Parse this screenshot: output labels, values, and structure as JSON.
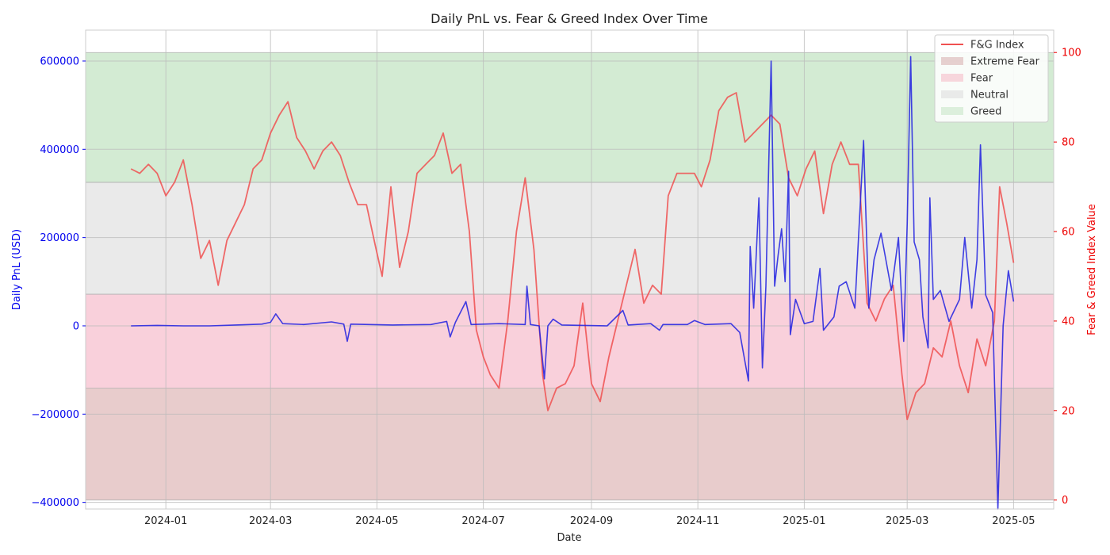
{
  "chart_data": {
    "type": "line",
    "title": "Daily PnL vs. Fear & Greed Index Over Time",
    "xlabel": "Date",
    "ylabel_left": "Daily PnL (USD)",
    "ylabel_right": "Fear & Greed Index Value",
    "x_tick_labels": [
      "2024-01",
      "2024-03",
      "2024-05",
      "2024-07",
      "2024-09",
      "2024-11",
      "2025-01",
      "2025-03",
      "2025-05"
    ],
    "x_tick_dates": [
      "2024-01-01",
      "2024-03-01",
      "2024-05-01",
      "2024-07-01",
      "2024-09-01",
      "2024-11-01",
      "2025-01-01",
      "2025-03-01",
      "2025-05-01"
    ],
    "xlim": [
      "2023-11-16",
      "2025-05-24"
    ],
    "ylim_left": [
      -415000,
      670000
    ],
    "yticks_left": [
      -400000,
      -200000,
      0,
      200000,
      400000,
      600000
    ],
    "ylim_right": [
      -2,
      105
    ],
    "yticks_right": [
      0,
      20,
      40,
      60,
      80,
      100
    ],
    "grid": true,
    "legend_position": "upper-right",
    "legend": [
      {
        "label": "F&G Index",
        "kind": "line",
        "color": "#f05050"
      },
      {
        "label": "Extreme Fear",
        "kind": "patch",
        "color": "#d9b3b3"
      },
      {
        "label": "Fear",
        "kind": "patch",
        "color": "#f5bcc8"
      },
      {
        "label": "Neutral",
        "kind": "patch",
        "color": "#dddddd"
      },
      {
        "label": "Greed",
        "kind": "patch",
        "color": "#c8e6c8"
      }
    ],
    "bands_right_axis": [
      {
        "name": "Extreme Fear",
        "from": 0,
        "to": 25,
        "color": "#e8cccc"
      },
      {
        "name": "Fear",
        "from": 25,
        "to": 46,
        "color": "#f9d0db"
      },
      {
        "name": "Neutral",
        "from": 46,
        "to": 71,
        "color": "#eaeaea"
      },
      {
        "name": "Greed",
        "from": 71,
        "to": 100,
        "color": "#d3ebd3"
      }
    ],
    "series": [
      {
        "name": "F&G Index",
        "axis": "right",
        "color": "#f05050",
        "points": [
          [
            "2023-12-12",
            74
          ],
          [
            "2023-12-17",
            73
          ],
          [
            "2023-12-22",
            75
          ],
          [
            "2023-12-27",
            73
          ],
          [
            "2024-01-01",
            68
          ],
          [
            "2024-01-06",
            71
          ],
          [
            "2024-01-11",
            76
          ],
          [
            "2024-01-16",
            66
          ],
          [
            "2024-01-21",
            54
          ],
          [
            "2024-01-26",
            58
          ],
          [
            "2024-01-31",
            48
          ],
          [
            "2024-02-05",
            58
          ],
          [
            "2024-02-10",
            62
          ],
          [
            "2024-02-15",
            66
          ],
          [
            "2024-02-20",
            74
          ],
          [
            "2024-02-25",
            76
          ],
          [
            "2024-03-01",
            82
          ],
          [
            "2024-03-06",
            86
          ],
          [
            "2024-03-11",
            89
          ],
          [
            "2024-03-16",
            81
          ],
          [
            "2024-03-21",
            78
          ],
          [
            "2024-03-26",
            74
          ],
          [
            "2024-03-31",
            78
          ],
          [
            "2024-04-05",
            80
          ],
          [
            "2024-04-10",
            77
          ],
          [
            "2024-04-15",
            71
          ],
          [
            "2024-04-20",
            66
          ],
          [
            "2024-04-25",
            66
          ],
          [
            "2024-04-30",
            57
          ],
          [
            "2024-05-04",
            50
          ],
          [
            "2024-05-09",
            70
          ],
          [
            "2024-05-14",
            52
          ],
          [
            "2024-05-19",
            60
          ],
          [
            "2024-05-24",
            73
          ],
          [
            "2024-05-29",
            75
          ],
          [
            "2024-06-03",
            77
          ],
          [
            "2024-06-08",
            82
          ],
          [
            "2024-06-13",
            73
          ],
          [
            "2024-06-18",
            75
          ],
          [
            "2024-06-23",
            60
          ],
          [
            "2024-06-27",
            38
          ],
          [
            "2024-07-01",
            32
          ],
          [
            "2024-07-05",
            28
          ],
          [
            "2024-07-10",
            25
          ],
          [
            "2024-07-15",
            40
          ],
          [
            "2024-07-20",
            60
          ],
          [
            "2024-07-25",
            72
          ],
          [
            "2024-07-30",
            56
          ],
          [
            "2024-08-04",
            28
          ],
          [
            "2024-08-07",
            20
          ],
          [
            "2024-08-12",
            25
          ],
          [
            "2024-08-17",
            26
          ],
          [
            "2024-08-22",
            30
          ],
          [
            "2024-08-27",
            44
          ],
          [
            "2024-09-01",
            26
          ],
          [
            "2024-09-06",
            22
          ],
          [
            "2024-09-11",
            32
          ],
          [
            "2024-09-16",
            40
          ],
          [
            "2024-09-21",
            48
          ],
          [
            "2024-09-26",
            56
          ],
          [
            "2024-10-01",
            44
          ],
          [
            "2024-10-06",
            48
          ],
          [
            "2024-10-11",
            46
          ],
          [
            "2024-10-15",
            68
          ],
          [
            "2024-10-20",
            73
          ],
          [
            "2024-10-25",
            73
          ],
          [
            "2024-10-30",
            73
          ],
          [
            "2024-11-03",
            70
          ],
          [
            "2024-11-08",
            76
          ],
          [
            "2024-11-13",
            87
          ],
          [
            "2024-11-18",
            90
          ],
          [
            "2024-11-23",
            91
          ],
          [
            "2024-11-28",
            80
          ],
          [
            "2024-12-03",
            82
          ],
          [
            "2024-12-08",
            84
          ],
          [
            "2024-12-13",
            86
          ],
          [
            "2024-12-18",
            84
          ],
          [
            "2024-12-23",
            72
          ],
          [
            "2024-12-28",
            68
          ],
          [
            "2025-01-02",
            74
          ],
          [
            "2025-01-07",
            78
          ],
          [
            "2025-01-12",
            64
          ],
          [
            "2025-01-17",
            75
          ],
          [
            "2025-01-22",
            80
          ],
          [
            "2025-01-27",
            75
          ],
          [
            "2025-02-01",
            75
          ],
          [
            "2025-02-06",
            44
          ],
          [
            "2025-02-11",
            40
          ],
          [
            "2025-02-16",
            45
          ],
          [
            "2025-02-21",
            48
          ],
          [
            "2025-02-26",
            28
          ],
          [
            "2025-03-01",
            18
          ],
          [
            "2025-03-06",
            24
          ],
          [
            "2025-03-11",
            26
          ],
          [
            "2025-03-16",
            34
          ],
          [
            "2025-03-21",
            32
          ],
          [
            "2025-03-26",
            40
          ],
          [
            "2025-03-31",
            30
          ],
          [
            "2025-04-05",
            24
          ],
          [
            "2025-04-10",
            36
          ],
          [
            "2025-04-15",
            30
          ],
          [
            "2025-04-20",
            40
          ],
          [
            "2025-04-23",
            70
          ],
          [
            "2025-04-27",
            62
          ],
          [
            "2025-05-01",
            53
          ]
        ]
      },
      {
        "name": "",
        "axis": "left",
        "color": "#2020e0",
        "points": [
          [
            "2023-12-12",
            0
          ],
          [
            "2023-12-27",
            1000
          ],
          [
            "2024-01-11",
            0
          ],
          [
            "2024-01-26",
            0
          ],
          [
            "2024-02-10",
            2000
          ],
          [
            "2024-02-25",
            4000
          ],
          [
            "2024-03-01",
            8000
          ],
          [
            "2024-03-04",
            27000
          ],
          [
            "2024-03-08",
            5000
          ],
          [
            "2024-03-20",
            3000
          ],
          [
            "2024-04-05",
            9000
          ],
          [
            "2024-04-12",
            4000
          ],
          [
            "2024-04-14",
            -35000
          ],
          [
            "2024-04-16",
            4000
          ],
          [
            "2024-05-10",
            2000
          ],
          [
            "2024-06-01",
            3000
          ],
          [
            "2024-06-10",
            10000
          ],
          [
            "2024-06-12",
            -25000
          ],
          [
            "2024-06-15",
            8000
          ],
          [
            "2024-06-21",
            55000
          ],
          [
            "2024-06-24",
            3000
          ],
          [
            "2024-07-10",
            5000
          ],
          [
            "2024-07-25",
            3000
          ],
          [
            "2024-07-26",
            90000
          ],
          [
            "2024-07-28",
            3000
          ],
          [
            "2024-08-02",
            0
          ],
          [
            "2024-08-05",
            -120000
          ],
          [
            "2024-08-07",
            0
          ],
          [
            "2024-08-10",
            15000
          ],
          [
            "2024-08-15",
            2000
          ],
          [
            "2024-09-10",
            0
          ],
          [
            "2024-09-19",
            35000
          ],
          [
            "2024-09-22",
            2000
          ],
          [
            "2024-10-05",
            5000
          ],
          [
            "2024-10-10",
            -10000
          ],
          [
            "2024-10-12",
            3000
          ],
          [
            "2024-10-26",
            3000
          ],
          [
            "2024-10-30",
            12000
          ],
          [
            "2024-11-05",
            3000
          ],
          [
            "2024-11-20",
            5000
          ],
          [
            "2024-11-25",
            -15000
          ],
          [
            "2024-11-30",
            -125000
          ],
          [
            "2024-12-01",
            180000
          ],
          [
            "2024-12-03",
            40000
          ],
          [
            "2024-12-06",
            290000
          ],
          [
            "2024-12-08",
            -95000
          ],
          [
            "2024-12-10",
            90000
          ],
          [
            "2024-12-13",
            600000
          ],
          [
            "2024-12-15",
            90000
          ],
          [
            "2024-12-17",
            160000
          ],
          [
            "2024-12-19",
            220000
          ],
          [
            "2024-12-21",
            100000
          ],
          [
            "2024-12-23",
            350000
          ],
          [
            "2024-12-24",
            -20000
          ],
          [
            "2024-12-27",
            60000
          ],
          [
            "2025-01-01",
            5000
          ],
          [
            "2025-01-06",
            10000
          ],
          [
            "2025-01-10",
            130000
          ],
          [
            "2025-01-12",
            -10000
          ],
          [
            "2025-01-18",
            20000
          ],
          [
            "2025-01-21",
            90000
          ],
          [
            "2025-01-25",
            100000
          ],
          [
            "2025-01-30",
            40000
          ],
          [
            "2025-02-04",
            420000
          ],
          [
            "2025-02-07",
            40000
          ],
          [
            "2025-02-10",
            150000
          ],
          [
            "2025-02-14",
            210000
          ],
          [
            "2025-02-20",
            80000
          ],
          [
            "2025-02-24",
            200000
          ],
          [
            "2025-02-27",
            -35000
          ],
          [
            "2025-03-01",
            230000
          ],
          [
            "2025-03-03",
            610000
          ],
          [
            "2025-03-05",
            190000
          ],
          [
            "2025-03-08",
            150000
          ],
          [
            "2025-03-10",
            20000
          ],
          [
            "2025-03-13",
            -50000
          ],
          [
            "2025-03-14",
            290000
          ],
          [
            "2025-03-16",
            60000
          ],
          [
            "2025-03-20",
            80000
          ],
          [
            "2025-03-25",
            10000
          ],
          [
            "2025-03-31",
            60000
          ],
          [
            "2025-04-03",
            200000
          ],
          [
            "2025-04-07",
            40000
          ],
          [
            "2025-04-10",
            150000
          ],
          [
            "2025-04-12",
            410000
          ],
          [
            "2025-04-15",
            70000
          ],
          [
            "2025-04-19",
            30000
          ],
          [
            "2025-04-22",
            -415000
          ],
          [
            "2025-04-25",
            0
          ],
          [
            "2025-04-28",
            125000
          ],
          [
            "2025-05-01",
            55000
          ]
        ]
      }
    ]
  }
}
